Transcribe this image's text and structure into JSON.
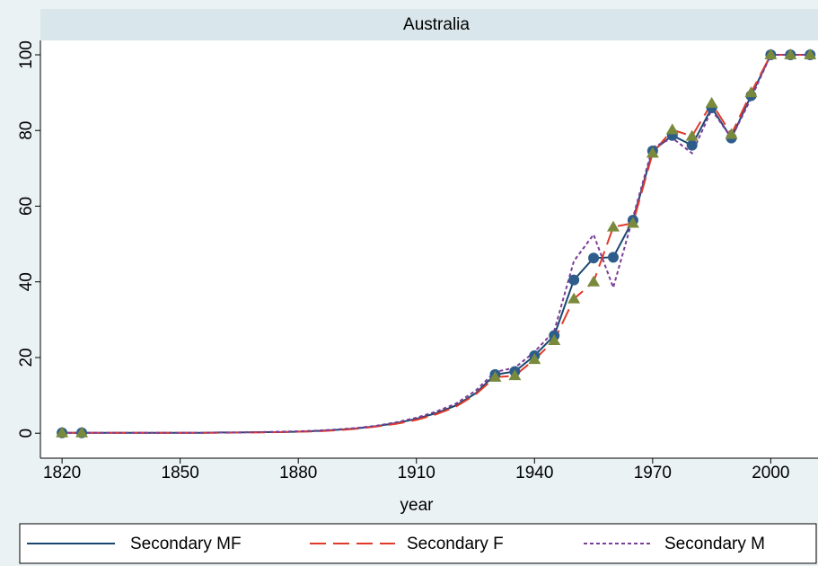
{
  "chart_data": {
    "type": "line",
    "title": "Australia",
    "x_label": "year",
    "x": [
      1820,
      1825,
      1830,
      1835,
      1840,
      1845,
      1850,
      1855,
      1860,
      1865,
      1870,
      1875,
      1880,
      1885,
      1890,
      1895,
      1900,
      1905,
      1910,
      1915,
      1920,
      1925,
      1930,
      1935,
      1940,
      1945,
      1950,
      1955,
      1960,
      1965,
      1970,
      1975,
      1980,
      1985,
      1990,
      1995,
      2000,
      2005,
      2010
    ],
    "series": [
      {
        "name": "Secondary MF",
        "color": "#1a476f",
        "dash": "solid",
        "marker": "circle",
        "marker_color": "#2e5d8c",
        "marker_shown": [
          true,
          true,
          false,
          false,
          false,
          false,
          false,
          false,
          false,
          false,
          false,
          false,
          false,
          false,
          false,
          false,
          false,
          false,
          false,
          false,
          false,
          false,
          true,
          true,
          true,
          true,
          true,
          true,
          true,
          true,
          true,
          true,
          true,
          true,
          true,
          true,
          true,
          true,
          true
        ],
        "values": [
          0.1,
          0.1,
          0.1,
          0.1,
          0.1,
          0.1,
          0.1,
          0.1,
          0.2,
          0.2,
          0.3,
          0.3,
          0.4,
          0.6,
          0.9,
          1.3,
          1.9,
          2.7,
          3.8,
          5.3,
          7.3,
          10.5,
          15.5,
          16.3,
          20.5,
          25.8,
          40.5,
          46.3,
          46.5,
          56.3,
          74.6,
          78.7,
          76.1,
          86,
          78,
          89.2,
          100,
          100,
          100
        ]
      },
      {
        "name": "Secondary F",
        "color": "#e03a2a",
        "dash": "long",
        "marker": "triangle",
        "marker_color": "#7a8a3c",
        "marker_shown": [
          true,
          true,
          false,
          false,
          false,
          false,
          false,
          false,
          false,
          false,
          false,
          false,
          false,
          false,
          false,
          false,
          false,
          false,
          false,
          false,
          false,
          false,
          true,
          true,
          true,
          true,
          true,
          true,
          true,
          true,
          true,
          true,
          true,
          true,
          true,
          true,
          true,
          true,
          true
        ],
        "values": [
          0.1,
          0.1,
          0.1,
          0.1,
          0.1,
          0.1,
          0.1,
          0.1,
          0.1,
          0.2,
          0.2,
          0.3,
          0.4,
          0.5,
          0.8,
          1.2,
          1.8,
          2.5,
          3.5,
          5,
          7,
          10.2,
          14.8,
          15.2,
          19.5,
          24.5,
          35.5,
          40,
          54.5,
          55.5,
          74,
          80.2,
          78.5,
          87.2,
          79,
          90,
          100,
          100,
          100
        ]
      },
      {
        "name": "Secondary M",
        "color": "#7b3d96",
        "dash": "short",
        "marker": "none",
        "values": [
          0.1,
          0.1,
          0.1,
          0.1,
          0.1,
          0.1,
          0.1,
          0.1,
          0.2,
          0.2,
          0.3,
          0.4,
          0.5,
          0.7,
          1,
          1.4,
          2,
          2.9,
          4.1,
          5.7,
          7.8,
          11.2,
          16.2,
          17.3,
          21.5,
          27,
          45.5,
          52.5,
          38.5,
          57,
          75.5,
          78,
          74,
          85.5,
          78,
          88.5,
          100,
          100,
          100
        ]
      }
    ],
    "xlim": [
      1814.5,
      2012
    ],
    "xticks": [
      1820,
      1850,
      1880,
      1910,
      1940,
      1970,
      2000
    ],
    "ylim": [
      -6.6,
      103.8
    ],
    "yticks": [
      0,
      20,
      40,
      60,
      80,
      100
    ],
    "grid": false,
    "legend": "bottom"
  }
}
